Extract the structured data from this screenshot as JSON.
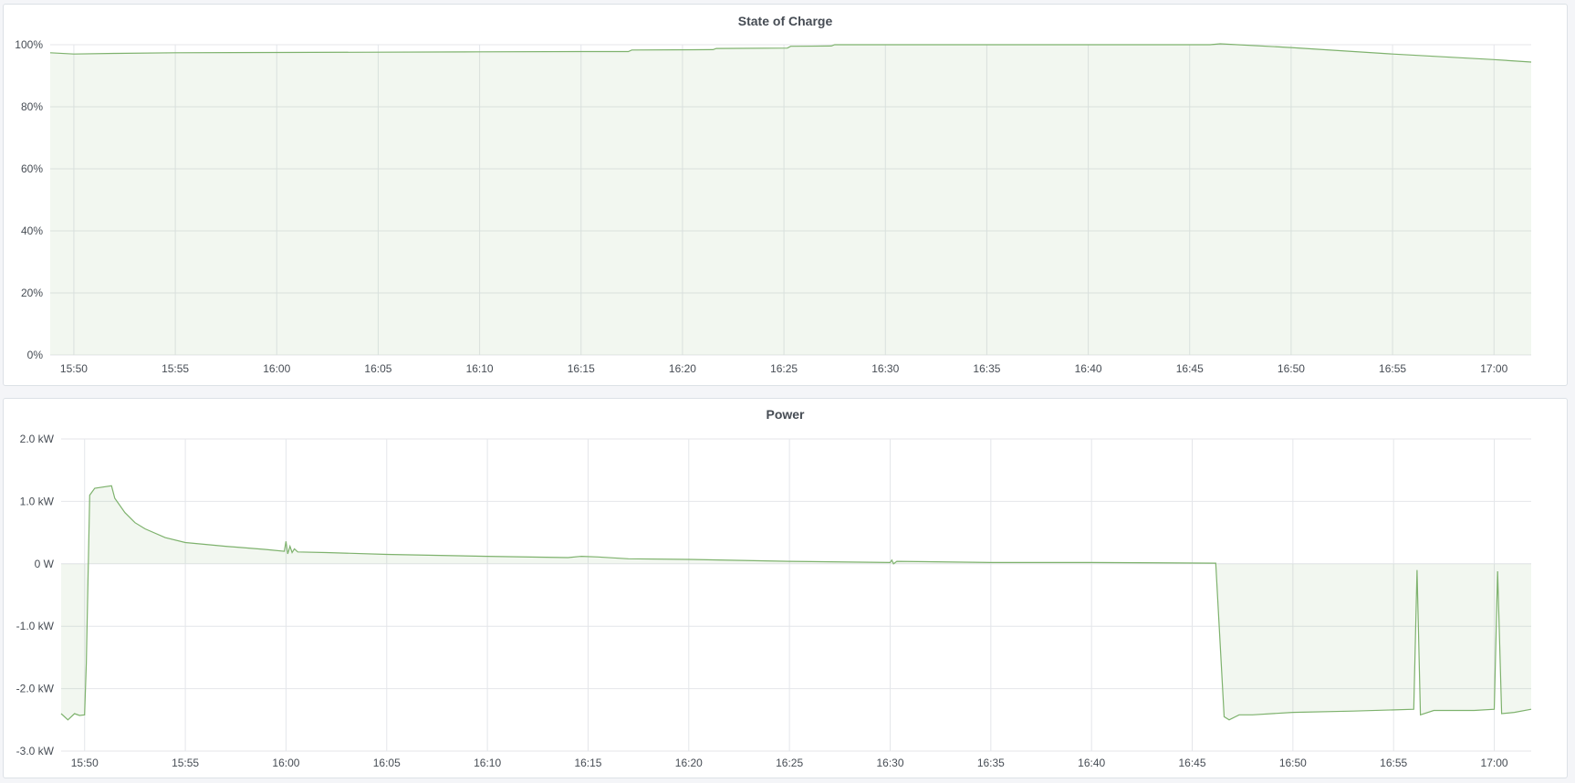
{
  "chart_data": [
    {
      "type": "area",
      "title": "State of Charge",
      "xlabel": "",
      "ylabel": "",
      "x_range": [
        "15:48:50",
        "17:01:50"
      ],
      "ylim": [
        0,
        100
      ],
      "y_ticks": [
        "0%",
        "20%",
        "40%",
        "60%",
        "80%",
        "100%"
      ],
      "x_ticks": [
        "15:50",
        "15:55",
        "16:00",
        "16:05",
        "16:10",
        "16:15",
        "16:20",
        "16:25",
        "16:30",
        "16:35",
        "16:40",
        "16:45",
        "16:50",
        "16:55",
        "17:00"
      ],
      "grid": true,
      "color": "#7eb26d",
      "series": [
        {
          "x": [
            "15:48:50",
            "15:50:00",
            "15:52:00",
            "15:55:00",
            "16:00:00",
            "16:05:00",
            "16:10:00",
            "16:15:00",
            "16:17:20",
            "16:17:30",
            "16:21:30",
            "16:21:40",
            "16:25:10",
            "16:25:20",
            "16:27:20",
            "16:27:30",
            "16:40:00",
            "16:46:00",
            "16:46:30",
            "16:50:00",
            "16:55:00",
            "17:00:00",
            "17:01:50"
          ],
          "y": [
            97.4,
            97.0,
            97.2,
            97.4,
            97.5,
            97.6,
            97.7,
            97.8,
            97.8,
            98.3,
            98.4,
            98.8,
            98.9,
            99.5,
            99.6,
            100.0,
            100.0,
            100.0,
            100.3,
            99.1,
            97.0,
            95.2,
            94.4
          ]
        }
      ]
    },
    {
      "type": "area",
      "title": "Power",
      "xlabel": "",
      "ylabel": "",
      "x_range": [
        "15:48:50",
        "17:01:50"
      ],
      "ylim": [
        -3.0,
        2.0
      ],
      "y_unit": "kW",
      "y_ticks": [
        "-3.0 kW",
        "-2.0 kW",
        "-1.0 kW",
        "0 W",
        "1.0 kW",
        "2.0 kW"
      ],
      "x_ticks": [
        "15:50",
        "15:55",
        "16:00",
        "16:05",
        "16:10",
        "16:15",
        "16:20",
        "16:25",
        "16:30",
        "16:35",
        "16:40",
        "16:45",
        "16:50",
        "16:55",
        "17:00"
      ],
      "grid": true,
      "color": "#7eb26d",
      "series": [
        {
          "x": [
            "15:48:50",
            "15:49:10",
            "15:49:30",
            "15:49:45",
            "15:50:00",
            "15:50:05",
            "15:50:15",
            "15:50:30",
            "15:51:20",
            "15:51:30",
            "15:52:00",
            "15:52:30",
            "15:53:00",
            "15:54:00",
            "15:55:00",
            "15:57:00",
            "15:59:00",
            "15:59:55",
            "16:00:00",
            "16:00:05",
            "16:00:12",
            "16:00:18",
            "16:00:25",
            "16:00:35",
            "16:02:00",
            "16:05:00",
            "16:10:00",
            "16:14:00",
            "16:14:40",
            "16:15:30",
            "16:17:00",
            "16:20:00",
            "16:25:00",
            "16:30:00",
            "16:30:05",
            "16:30:10",
            "16:30:20",
            "16:35:00",
            "16:40:00",
            "16:46:10",
            "16:46:35",
            "16:46:50",
            "16:47:20",
            "16:48:00",
            "16:50:00",
            "16:53:00",
            "16:56:00",
            "16:56:10",
            "16:56:20",
            "16:57:00",
            "16:59:00",
            "17:00:00",
            "17:00:10",
            "17:00:22",
            "17:01:00",
            "17:01:50"
          ],
          "y": [
            -2.4,
            -2.5,
            -2.4,
            -2.43,
            -2.42,
            -1.6,
            1.1,
            1.21,
            1.25,
            1.05,
            0.82,
            0.66,
            0.56,
            0.42,
            0.34,
            0.28,
            0.23,
            0.2,
            0.36,
            0.16,
            0.28,
            0.18,
            0.24,
            0.19,
            0.18,
            0.15,
            0.12,
            0.1,
            0.12,
            0.11,
            0.08,
            0.07,
            0.04,
            0.02,
            0.06,
            0.0,
            0.04,
            0.02,
            0.02,
            0.01,
            -2.45,
            -2.5,
            -2.42,
            -2.42,
            -2.38,
            -2.36,
            -2.33,
            -0.1,
            -2.42,
            -2.35,
            -2.35,
            -2.33,
            -0.12,
            -2.4,
            -2.38,
            -2.33
          ]
        }
      ]
    }
  ]
}
